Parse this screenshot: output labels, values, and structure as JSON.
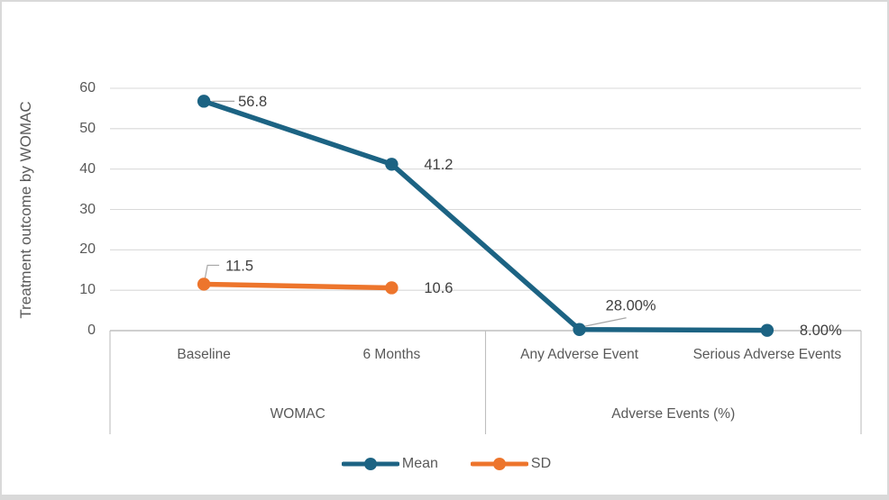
{
  "figure": {
    "background": "#ffffff",
    "border_color": "#d9d9d9"
  },
  "chart_data": {
    "type": "line",
    "title": "",
    "xlabel": "",
    "ylabel": "Treatment outcome by WOMAC",
    "ylim": [
      0,
      60
    ],
    "grid": true,
    "legend_position": "bottom",
    "ytick_labels": [
      "60",
      "50",
      "40",
      "30",
      "20",
      "10",
      "0"
    ],
    "categories": [
      "Baseline",
      "6 Months",
      "Any Adverse Event",
      "Serious Adverse Events"
    ],
    "category_groups": [
      {
        "label": "WOMAC",
        "span": [
          0,
          1
        ]
      },
      {
        "label": "Adverse Events (%)",
        "span": [
          2,
          3
        ]
      }
    ],
    "series": [
      {
        "name": "Mean",
        "color": "#1C6383",
        "values": [
          56.8,
          41.2,
          0.28,
          0.08
        ],
        "point_labels": [
          "56.8",
          "41.2",
          "28.00%",
          "8.00%"
        ]
      },
      {
        "name": "SD",
        "color": "#ED752C",
        "values": [
          11.5,
          10.6,
          null,
          null
        ],
        "point_labels": [
          "11.5",
          "10.6",
          null,
          null
        ]
      }
    ],
    "colors": {
      "gridline": "#d9d9d9",
      "axis_line": "#bfbfbf",
      "leader_line": "#a6a6a6",
      "data_label_text": "#404040",
      "axis_text": "#595959"
    }
  }
}
